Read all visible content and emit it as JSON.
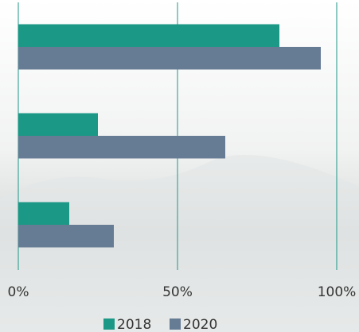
{
  "chart_data": {
    "type": "bar",
    "orientation": "horizontal",
    "categories": [
      null,
      null,
      null
    ],
    "series": [
      {
        "name": "2018",
        "color": "#1c9886",
        "values": [
          82,
          25,
          16
        ]
      },
      {
        "name": "2020",
        "color": "#667c94",
        "values": [
          95,
          65,
          30
        ]
      }
    ],
    "xlim": [
      0,
      100
    ],
    "xticks": [
      {
        "value": 0,
        "label": "0%"
      },
      {
        "value": 50,
        "label": "50%"
      },
      {
        "value": 100,
        "label": "100%"
      }
    ],
    "grid": true,
    "grid_color": "#1c9886",
    "legend": "bottom"
  }
}
